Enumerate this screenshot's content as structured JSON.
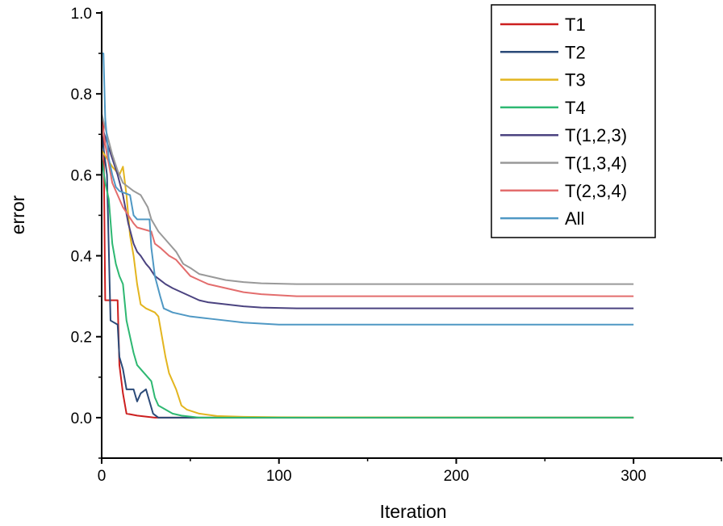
{
  "chart_data": {
    "type": "line",
    "xlabel": "Iteration",
    "ylabel": "error",
    "xlim": [
      0,
      350
    ],
    "ylim": [
      -0.1,
      1.0
    ],
    "x_ticks": [
      0,
      100,
      200,
      300
    ],
    "y_ticks": [
      0.0,
      0.2,
      0.4,
      0.6,
      0.8,
      1.0
    ],
    "x_tick_labels": [
      "0",
      "100",
      "200",
      "300"
    ],
    "y_tick_labels": [
      "0.0",
      "0.2",
      "0.4",
      "0.6",
      "0.8",
      "1.0"
    ],
    "legend_position": "top-right",
    "grid": false,
    "series": [
      {
        "name": "T1",
        "color": "#cc1f1f",
        "points": [
          [
            0,
            0.75
          ],
          [
            1,
            0.72
          ],
          [
            2,
            0.29
          ],
          [
            9,
            0.29
          ],
          [
            10,
            0.13
          ],
          [
            12,
            0.06
          ],
          [
            14,
            0.01
          ],
          [
            20,
            0.005
          ],
          [
            30,
            0.0
          ],
          [
            300,
            0.0
          ]
        ]
      },
      {
        "name": "T2",
        "color": "#2b4a78",
        "points": [
          [
            0,
            0.7
          ],
          [
            3,
            0.6
          ],
          [
            5,
            0.24
          ],
          [
            9,
            0.23
          ],
          [
            10,
            0.15
          ],
          [
            12,
            0.12
          ],
          [
            14,
            0.07
          ],
          [
            18,
            0.07
          ],
          [
            20,
            0.04
          ],
          [
            22,
            0.06
          ],
          [
            25,
            0.07
          ],
          [
            27,
            0.04
          ],
          [
            29,
            0.01
          ],
          [
            32,
            0.0
          ],
          [
            300,
            0.0
          ]
        ]
      },
      {
        "name": "T3",
        "color": "#e3b51f",
        "points": [
          [
            0,
            0.66
          ],
          [
            6,
            0.62
          ],
          [
            10,
            0.6
          ],
          [
            12,
            0.62
          ],
          [
            14,
            0.55
          ],
          [
            16,
            0.45
          ],
          [
            18,
            0.4
          ],
          [
            20,
            0.33
          ],
          [
            22,
            0.28
          ],
          [
            25,
            0.27
          ],
          [
            30,
            0.26
          ],
          [
            32,
            0.25
          ],
          [
            34,
            0.2
          ],
          [
            36,
            0.15
          ],
          [
            38,
            0.11
          ],
          [
            40,
            0.09
          ],
          [
            42,
            0.07
          ],
          [
            45,
            0.03
          ],
          [
            48,
            0.02
          ],
          [
            55,
            0.01
          ],
          [
            65,
            0.004
          ],
          [
            80,
            0.002
          ],
          [
            100,
            0.001
          ],
          [
            300,
            0.0
          ]
        ]
      },
      {
        "name": "T4",
        "color": "#2eb872",
        "points": [
          [
            0,
            0.64
          ],
          [
            2,
            0.58
          ],
          [
            4,
            0.54
          ],
          [
            6,
            0.43
          ],
          [
            8,
            0.38
          ],
          [
            10,
            0.35
          ],
          [
            12,
            0.33
          ],
          [
            14,
            0.24
          ],
          [
            16,
            0.2
          ],
          [
            18,
            0.16
          ],
          [
            20,
            0.13
          ],
          [
            24,
            0.11
          ],
          [
            28,
            0.09
          ],
          [
            30,
            0.05
          ],
          [
            32,
            0.03
          ],
          [
            36,
            0.02
          ],
          [
            40,
            0.01
          ],
          [
            45,
            0.005
          ],
          [
            55,
            0.0
          ],
          [
            300,
            0.0
          ]
        ]
      },
      {
        "name": "T(1,2,3)",
        "color": "#4b4380",
        "points": [
          [
            0,
            0.72
          ],
          [
            3,
            0.68
          ],
          [
            6,
            0.64
          ],
          [
            9,
            0.6
          ],
          [
            12,
            0.55
          ],
          [
            15,
            0.48
          ],
          [
            18,
            0.43
          ],
          [
            20,
            0.41
          ],
          [
            22,
            0.4
          ],
          [
            25,
            0.38
          ],
          [
            27,
            0.37
          ],
          [
            30,
            0.35
          ],
          [
            33,
            0.34
          ],
          [
            36,
            0.33
          ],
          [
            40,
            0.32
          ],
          [
            45,
            0.31
          ],
          [
            50,
            0.3
          ],
          [
            55,
            0.29
          ],
          [
            60,
            0.285
          ],
          [
            70,
            0.28
          ],
          [
            80,
            0.275
          ],
          [
            90,
            0.272
          ],
          [
            110,
            0.27
          ],
          [
            140,
            0.27
          ],
          [
            300,
            0.27
          ]
        ]
      },
      {
        "name": "T(1,3,4)",
        "color": "#999999",
        "points": [
          [
            0,
            0.75
          ],
          [
            3,
            0.7
          ],
          [
            6,
            0.65
          ],
          [
            9,
            0.61
          ],
          [
            12,
            0.58
          ],
          [
            15,
            0.57
          ],
          [
            18,
            0.56
          ],
          [
            22,
            0.55
          ],
          [
            26,
            0.52
          ],
          [
            28,
            0.49
          ],
          [
            32,
            0.46
          ],
          [
            38,
            0.43
          ],
          [
            42,
            0.41
          ],
          [
            46,
            0.38
          ],
          [
            50,
            0.37
          ],
          [
            55,
            0.355
          ],
          [
            60,
            0.35
          ],
          [
            70,
            0.34
          ],
          [
            80,
            0.335
          ],
          [
            90,
            0.332
          ],
          [
            110,
            0.33
          ],
          [
            150,
            0.33
          ],
          [
            300,
            0.33
          ]
        ]
      },
      {
        "name": "T(2,3,4)",
        "color": "#e36d6d",
        "points": [
          [
            0,
            0.73
          ],
          [
            3,
            0.65
          ],
          [
            6,
            0.58
          ],
          [
            9,
            0.55
          ],
          [
            12,
            0.52
          ],
          [
            15,
            0.5
          ],
          [
            18,
            0.48
          ],
          [
            20,
            0.47
          ],
          [
            28,
            0.46
          ],
          [
            30,
            0.43
          ],
          [
            33,
            0.42
          ],
          [
            38,
            0.4
          ],
          [
            42,
            0.39
          ],
          [
            46,
            0.37
          ],
          [
            50,
            0.35
          ],
          [
            55,
            0.34
          ],
          [
            60,
            0.33
          ],
          [
            70,
            0.32
          ],
          [
            80,
            0.31
          ],
          [
            90,
            0.305
          ],
          [
            110,
            0.3
          ],
          [
            300,
            0.3
          ]
        ]
      },
      {
        "name": "All",
        "color": "#4f98c4",
        "points": [
          [
            0,
            0.9
          ],
          [
            1,
            0.9
          ],
          [
            2,
            0.74
          ],
          [
            4,
            0.64
          ],
          [
            6,
            0.6
          ],
          [
            8,
            0.57
          ],
          [
            10,
            0.56
          ],
          [
            16,
            0.55
          ],
          [
            18,
            0.5
          ],
          [
            20,
            0.49
          ],
          [
            27,
            0.49
          ],
          [
            28,
            0.42
          ],
          [
            30,
            0.35
          ],
          [
            33,
            0.3
          ],
          [
            35,
            0.27
          ],
          [
            40,
            0.26
          ],
          [
            50,
            0.25
          ],
          [
            60,
            0.245
          ],
          [
            70,
            0.24
          ],
          [
            80,
            0.235
          ],
          [
            100,
            0.23
          ],
          [
            300,
            0.23
          ]
        ]
      }
    ]
  }
}
